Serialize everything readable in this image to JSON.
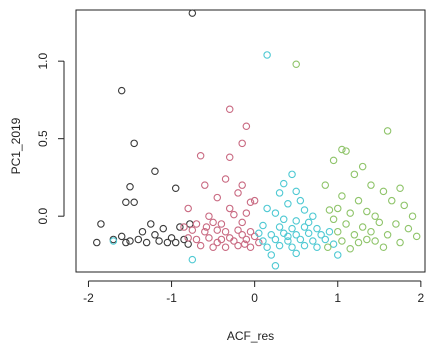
{
  "chart_data": {
    "type": "scatter",
    "xlabel": "ACF_res",
    "ylabel": "PC1_2019",
    "xlim": [
      -2.15,
      2.05
    ],
    "ylim": [
      -0.36,
      1.33
    ],
    "xticks": [
      -2,
      -1,
      0,
      1,
      2
    ],
    "yticks": [
      0.0,
      0.5,
      1.0
    ],
    "x_tick_labels": [
      "-2",
      "-1",
      "0",
      "1",
      "2"
    ],
    "y_tick_labels": [
      "0.0",
      "0.5",
      "1.0"
    ],
    "grid": false,
    "marker": "open-circle",
    "series": [
      {
        "color": "#3a3a3a",
        "points": [
          [
            -0.75,
            1.31
          ],
          [
            -1.6,
            0.81
          ],
          [
            -1.45,
            0.47
          ],
          [
            -1.2,
            0.29
          ],
          [
            -1.55,
            0.09
          ],
          [
            -1.45,
            0.09
          ],
          [
            -1.5,
            0.19
          ],
          [
            -0.95,
            0.18
          ],
          [
            -1.85,
            -0.05
          ],
          [
            -1.7,
            -0.15
          ],
          [
            -1.9,
            -0.17
          ],
          [
            -1.6,
            -0.13
          ],
          [
            -1.55,
            -0.17
          ],
          [
            -1.4,
            -0.15
          ],
          [
            -1.35,
            -0.1
          ],
          [
            -1.3,
            -0.17
          ],
          [
            -1.25,
            -0.05
          ],
          [
            -1.2,
            -0.12
          ],
          [
            -1.15,
            -0.16
          ],
          [
            -1.1,
            -0.08
          ],
          [
            -1.05,
            -0.17
          ],
          [
            -1.0,
            -0.14
          ],
          [
            -0.95,
            -0.17
          ],
          [
            -0.9,
            -0.07
          ],
          [
            -0.85,
            -0.15
          ],
          [
            -0.8,
            -0.18
          ],
          [
            -0.78,
            -0.05
          ],
          [
            -1.5,
            -0.16
          ]
        ]
      },
      {
        "color": "#c96a82",
        "points": [
          [
            -0.3,
            0.69
          ],
          [
            -0.1,
            0.58
          ],
          [
            -0.15,
            0.47
          ],
          [
            -0.65,
            0.39
          ],
          [
            -0.3,
            0.38
          ],
          [
            -0.35,
            0.24
          ],
          [
            -0.6,
            0.2
          ],
          [
            -0.15,
            0.2
          ],
          [
            -0.2,
            0.15
          ],
          [
            -0.45,
            0.12
          ],
          [
            -0.05,
            0.09
          ],
          [
            0.0,
            0.1
          ],
          [
            -0.8,
            0.05
          ],
          [
            -0.3,
            0.05
          ],
          [
            -0.1,
            0.02
          ],
          [
            -0.55,
            0.0
          ],
          [
            -0.25,
            0.01
          ],
          [
            -0.7,
            -0.05
          ],
          [
            -0.5,
            -0.04
          ],
          [
            -0.15,
            -0.04
          ],
          [
            -0.75,
            -0.09
          ],
          [
            -0.6,
            -0.1
          ],
          [
            -0.45,
            -0.09
          ],
          [
            -0.35,
            -0.1
          ],
          [
            -0.2,
            -0.09
          ],
          [
            -0.05,
            -0.1
          ],
          [
            -0.8,
            -0.14
          ],
          [
            -0.7,
            -0.15
          ],
          [
            -0.55,
            -0.14
          ],
          [
            -0.4,
            -0.15
          ],
          [
            -0.3,
            -0.14
          ],
          [
            -0.1,
            -0.15
          ],
          [
            0.0,
            -0.13
          ],
          [
            -0.65,
            -0.19
          ],
          [
            -0.5,
            -0.2
          ],
          [
            -0.35,
            -0.2
          ],
          [
            -0.2,
            -0.19
          ],
          [
            -0.05,
            -0.2
          ],
          [
            -0.85,
            -0.07
          ],
          [
            -0.45,
            -0.17
          ],
          [
            -0.25,
            -0.16
          ],
          [
            -0.15,
            -0.12
          ],
          [
            -0.58,
            -0.07
          ],
          [
            -0.4,
            -0.05
          ],
          [
            -0.12,
            -0.18
          ],
          [
            0.05,
            -0.17
          ]
        ]
      },
      {
        "color": "#4fc9d3",
        "points": [
          [
            0.15,
            1.04
          ],
          [
            0.45,
            0.27
          ],
          [
            0.35,
            0.21
          ],
          [
            0.5,
            0.16
          ],
          [
            0.3,
            0.15
          ],
          [
            0.55,
            0.1
          ],
          [
            0.4,
            0.08
          ],
          [
            0.15,
            0.05
          ],
          [
            0.25,
            0.02
          ],
          [
            0.6,
            0.04
          ],
          [
            0.7,
            0.0
          ],
          [
            0.35,
            -0.02
          ],
          [
            0.5,
            -0.03
          ],
          [
            0.1,
            -0.06
          ],
          [
            0.3,
            -0.07
          ],
          [
            0.45,
            -0.08
          ],
          [
            0.6,
            -0.07
          ],
          [
            0.75,
            -0.08
          ],
          [
            0.05,
            -0.11
          ],
          [
            0.2,
            -0.12
          ],
          [
            0.35,
            -0.11
          ],
          [
            0.5,
            -0.12
          ],
          [
            0.65,
            -0.11
          ],
          [
            0.8,
            -0.12
          ],
          [
            0.9,
            -0.1
          ],
          [
            0.1,
            -0.16
          ],
          [
            0.25,
            -0.15
          ],
          [
            0.4,
            -0.16
          ],
          [
            0.55,
            -0.15
          ],
          [
            0.7,
            -0.16
          ],
          [
            0.85,
            -0.15
          ],
          [
            0.15,
            -0.2
          ],
          [
            0.3,
            -0.19
          ],
          [
            0.45,
            -0.2
          ],
          [
            0.6,
            -0.19
          ],
          [
            0.75,
            -0.2
          ],
          [
            0.2,
            -0.25
          ],
          [
            0.5,
            -0.24
          ],
          [
            0.25,
            -0.32
          ],
          [
            1.0,
            -0.25
          ],
          [
            -0.75,
            -0.28
          ],
          [
            -1.7,
            -0.16
          ],
          [
            0.65,
            -0.04
          ],
          [
            0.4,
            -0.13
          ],
          [
            0.95,
            -0.18
          ]
        ]
      },
      {
        "color": "#8fc46a",
        "points": [
          [
            0.5,
            0.98
          ],
          [
            1.6,
            0.55
          ],
          [
            1.05,
            0.43
          ],
          [
            1.1,
            0.42
          ],
          [
            0.95,
            0.36
          ],
          [
            1.3,
            0.32
          ],
          [
            1.2,
            0.27
          ],
          [
            0.85,
            0.2
          ],
          [
            1.4,
            0.2
          ],
          [
            1.55,
            0.16
          ],
          [
            1.75,
            0.18
          ],
          [
            1.05,
            0.13
          ],
          [
            1.25,
            0.1
          ],
          [
            1.65,
            0.1
          ],
          [
            1.8,
            0.07
          ],
          [
            0.9,
            0.04
          ],
          [
            1.0,
            0.05
          ],
          [
            1.15,
            0.02
          ],
          [
            1.35,
            0.03
          ],
          [
            1.45,
            0.0
          ],
          [
            1.9,
            0.0
          ],
          [
            0.95,
            -0.02
          ],
          [
            1.1,
            -0.05
          ],
          [
            1.3,
            -0.07
          ],
          [
            1.5,
            -0.04
          ],
          [
            1.7,
            -0.05
          ],
          [
            1.85,
            -0.08
          ],
          [
            1.0,
            -0.1
          ],
          [
            1.2,
            -0.12
          ],
          [
            1.4,
            -0.1
          ],
          [
            1.6,
            -0.12
          ],
          [
            1.95,
            -0.13
          ],
          [
            1.05,
            -0.16
          ],
          [
            1.25,
            -0.17
          ],
          [
            1.45,
            -0.16
          ],
          [
            1.75,
            -0.17
          ],
          [
            0.88,
            -0.2
          ],
          [
            1.15,
            -0.21
          ],
          [
            1.55,
            -0.2
          ],
          [
            1.35,
            -0.15
          ]
        ]
      }
    ]
  }
}
